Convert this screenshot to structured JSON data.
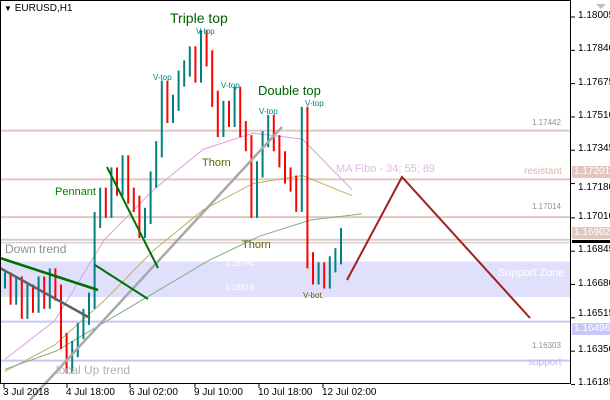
{
  "header": {
    "symbol": "EURUSD,H1"
  },
  "colors": {
    "up": "#008080",
    "down": "#ff0000",
    "ma34": "#dda0dd",
    "ma55": "#c0b060",
    "ma89": "#80b080",
    "level": "#e0c8c0",
    "support": "#c8c8f8",
    "zone": "#e0e0fc",
    "trend_green": "#007000",
    "trend_gray": "#a8a8a8",
    "forecast": "#a02020"
  },
  "annotations": {
    "triple_top": "Triple top",
    "double_top": "Double top",
    "v_top": "V-top",
    "thorn": "Thorn",
    "pennant": "Pennant",
    "down_trend": "Down trend",
    "local_up_trend": "local Up trend",
    "v_bot": "V-bot.",
    "ma_fibo": "MA Fibo - 34; 55; 89",
    "resistant": "resistant",
    "support_zone": "Support Zone",
    "support": "support"
  },
  "chart_data": {
    "type": "ohlc-bar",
    "symbol": "EURUSD",
    "timeframe": "H1",
    "ylim": [
      1.16185,
      1.18005
    ],
    "y_ticks": [
      "1.18005",
      "1.17840",
      "1.17675",
      "1.17510",
      "1.17345",
      "1.17180",
      "1.17010",
      "1.16845",
      "1.16680",
      "1.16515",
      "1.16350",
      "1.16185"
    ],
    "x_ticks": [
      "3 Jul 2018",
      "4 Jul 18:00",
      "6 Jul 02:00",
      "9 Jul 10:00",
      "10 Jul 18:00",
      "12 Jul 02:00"
    ],
    "close": [
      1.167,
      1.1662,
      1.1668,
      1.1655,
      1.1664,
      1.1658,
      1.1668,
      1.166,
      1.1672,
      1.1664,
      1.164,
      1.1628,
      1.1636,
      1.1645,
      1.1652,
      1.166,
      1.17,
      1.1712,
      1.1705,
      1.1722,
      1.1716,
      1.1728,
      1.1712,
      1.1708,
      1.1695,
      1.1702,
      1.172,
      1.1735,
      1.1765,
      1.1752,
      1.1758,
      1.177,
      1.1775,
      1.1782,
      1.1772,
      1.179,
      1.178,
      1.176,
      1.1745,
      1.1755,
      1.175,
      1.1762,
      1.1745,
      1.1738,
      1.1705,
      1.1725,
      1.174,
      1.1748,
      1.1738,
      1.173,
      1.1722,
      1.1718,
      1.1708,
      1.1752,
      1.168,
      1.1672,
      1.1675,
      1.167,
      1.1678,
      1.1682,
      1.1692
    ],
    "ma_series": [
      {
        "name": "MA 34",
        "values": [
          1.1631,
          1.165,
          1.169,
          1.1715,
          1.1735,
          1.1743,
          1.174,
          1.1715
        ]
      },
      {
        "name": "MA 55",
        "values": [
          1.1625,
          1.1638,
          1.166,
          1.1685,
          1.1705,
          1.1718,
          1.1722,
          1.1712
        ]
      },
      {
        "name": "MA 89",
        "values": [
          1.1626,
          1.1635,
          1.165,
          1.1665,
          1.168,
          1.1692,
          1.17,
          1.1703
        ]
      }
    ],
    "levels": [
      {
        "price": 1.17442,
        "label": "1.17442",
        "kind": "resistance"
      },
      {
        "price": 1.17201,
        "label": "1.17201",
        "kind": "resistance"
      },
      {
        "price": 1.17014,
        "label": "1.17014",
        "kind": "resistance"
      },
      {
        "price": 1.16902,
        "label": "1.16902",
        "kind": "resistance"
      },
      {
        "price": 1.16496,
        "label": "1.16496",
        "kind": "support"
      },
      {
        "price": 1.16303,
        "label": "1.16303",
        "kind": "support"
      }
    ],
    "support_zone": {
      "top": 1.16794,
      "bottom": 1.16618,
      "top_label": "1.16794",
      "bottom_label": "1.16618"
    }
  }
}
